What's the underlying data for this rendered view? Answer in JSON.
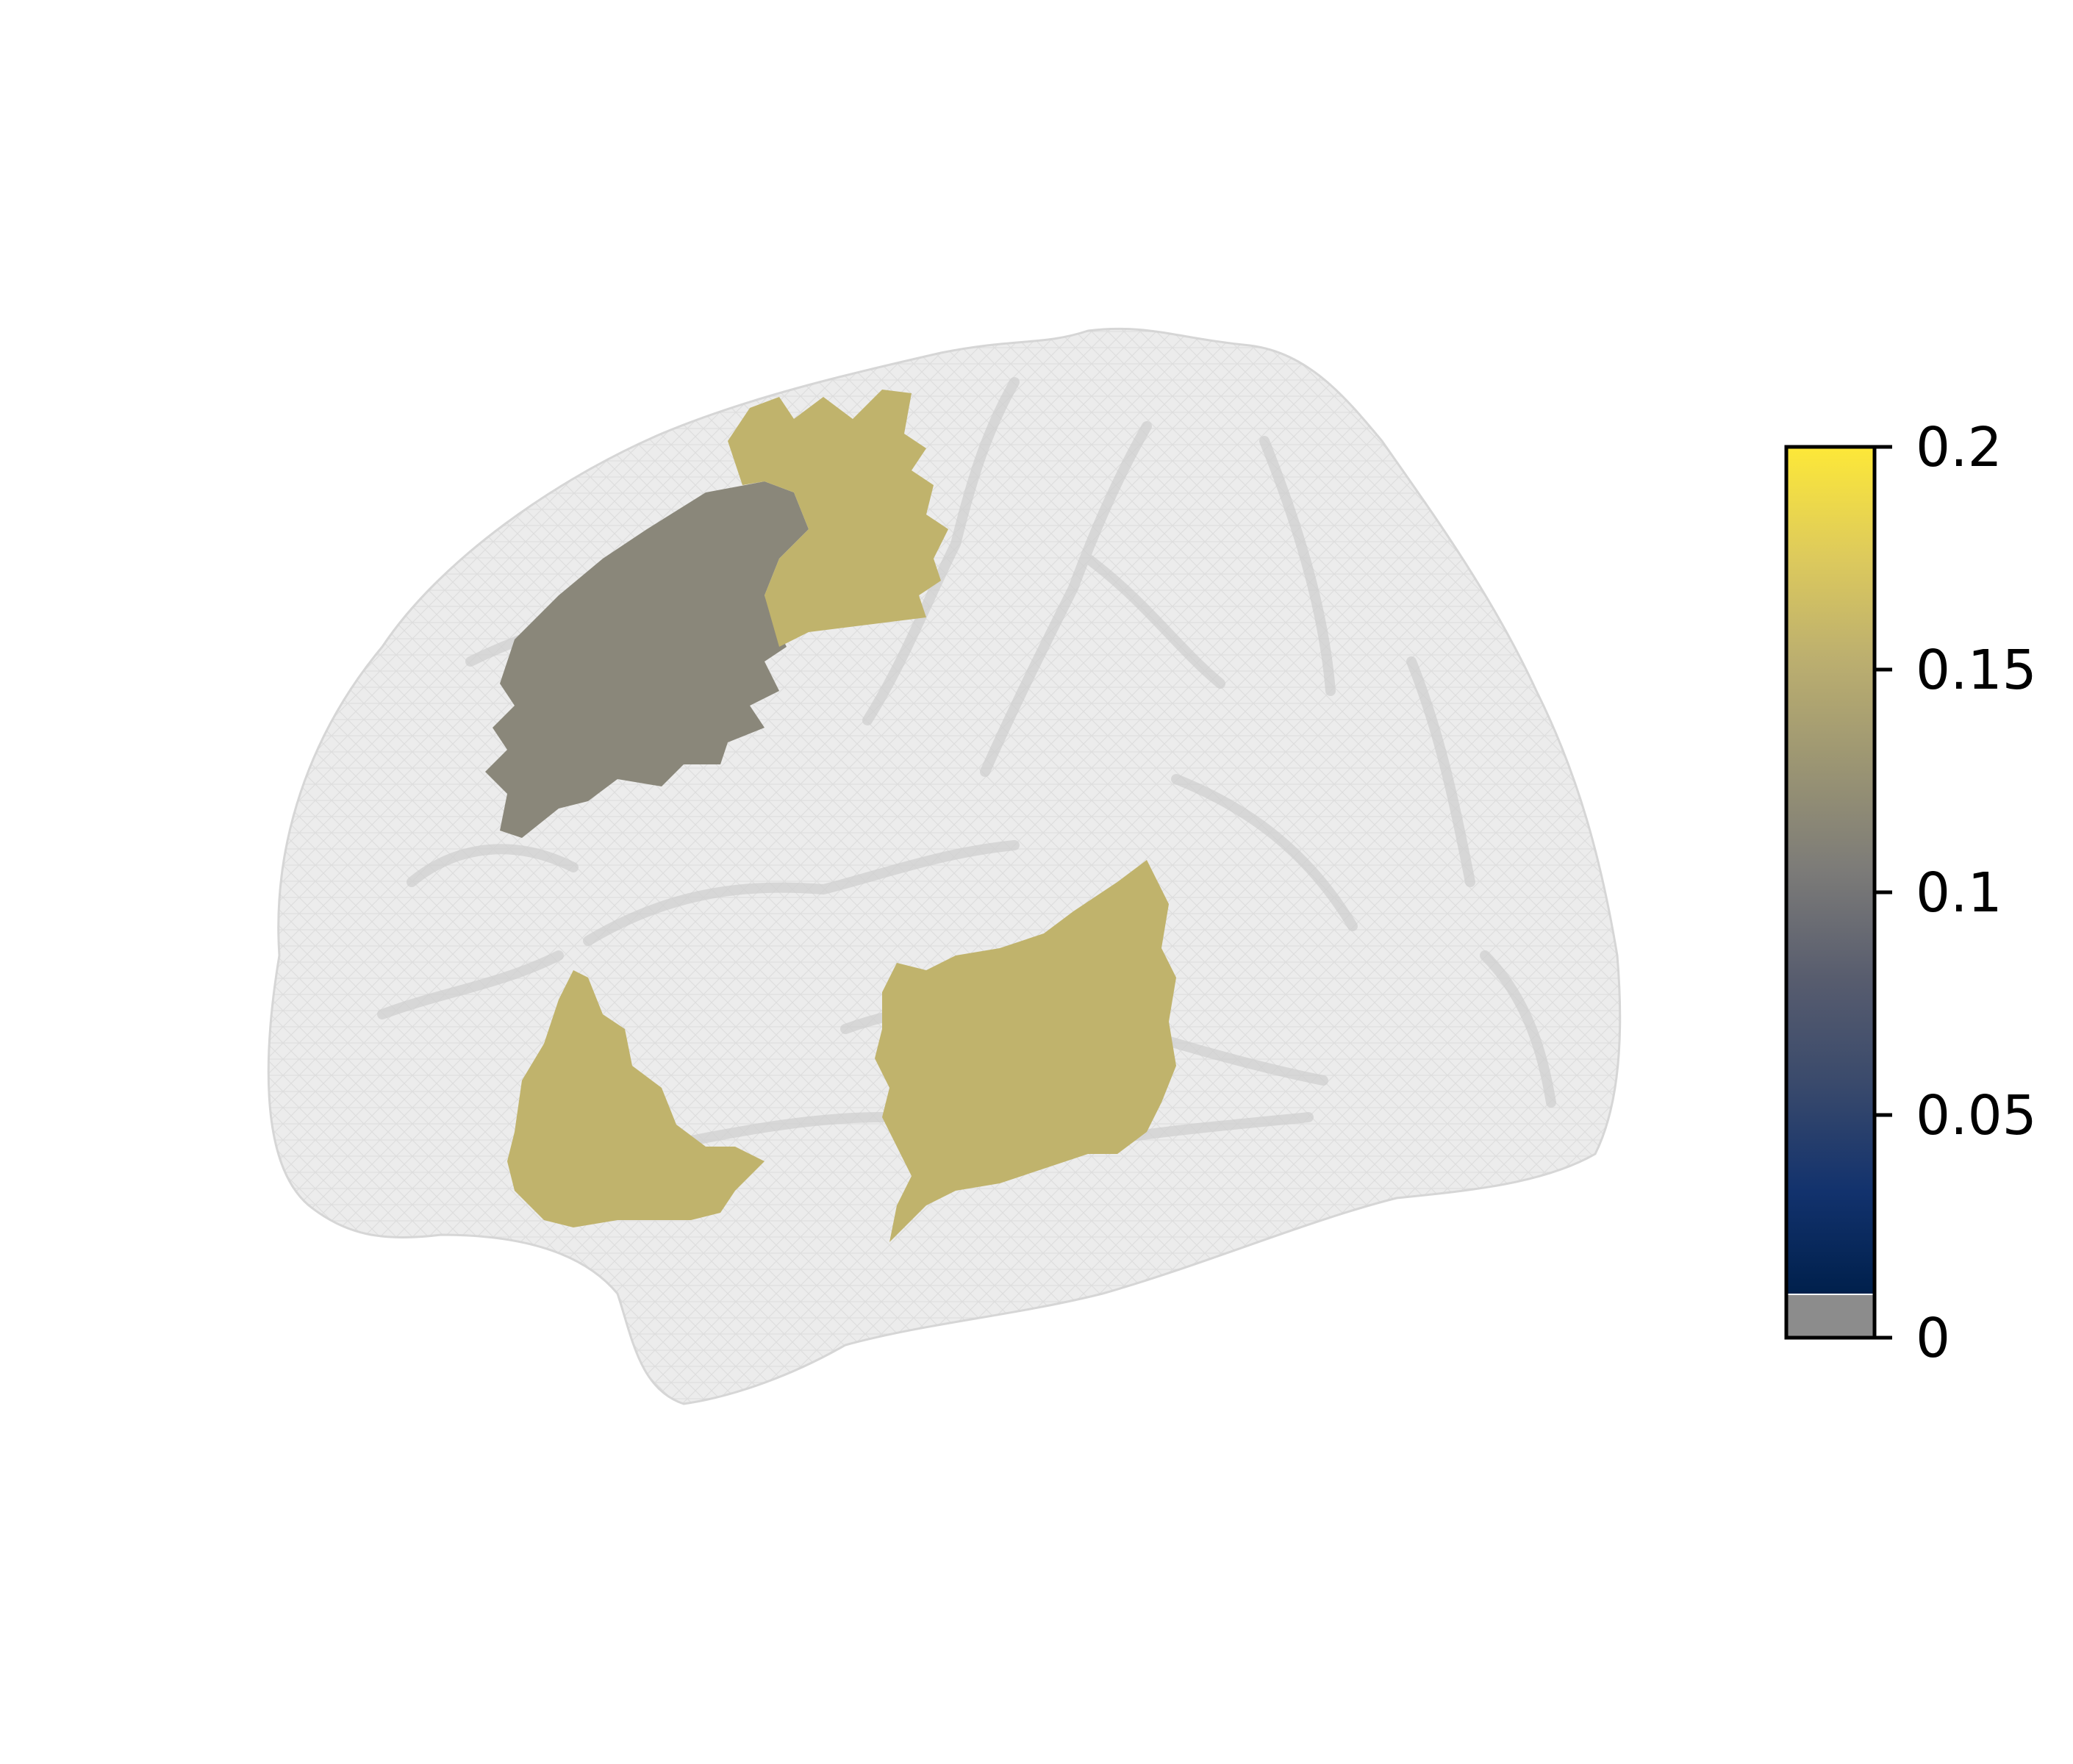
{
  "figure": {
    "type": "brain surface plot",
    "view": "lateral left hemisphere"
  },
  "colors": {
    "background": "#ffffff",
    "mesh_fill": "#e8e8e8",
    "mesh_line": "#c9c9c9",
    "highlight_gray_region": "#8a877a",
    "highlight_yellow_region": "#c0b36c",
    "below_threshold": "#8c8c8c"
  },
  "regions": [
    {
      "label": "",
      "value": 0.11,
      "color": "#8a877a"
    },
    {
      "label": "",
      "value": 0.15,
      "color": "#c0b36c"
    },
    {
      "label": "",
      "value": 0.15,
      "color": "#c0b36c"
    },
    {
      "label": "",
      "value": 0.15,
      "color": "#c0b36c"
    }
  ],
  "colorbar": {
    "colormap": "cividis",
    "range": [
      0,
      0.2
    ],
    "under_threshold": 0.01,
    "ticks": [
      {
        "value": 0.2,
        "label": "0.2"
      },
      {
        "value": 0.15,
        "label": "0.15"
      },
      {
        "value": 0.1,
        "label": "0.1"
      },
      {
        "value": 0.05,
        "label": "0.05"
      },
      {
        "value": 0,
        "label": "0"
      }
    ]
  }
}
